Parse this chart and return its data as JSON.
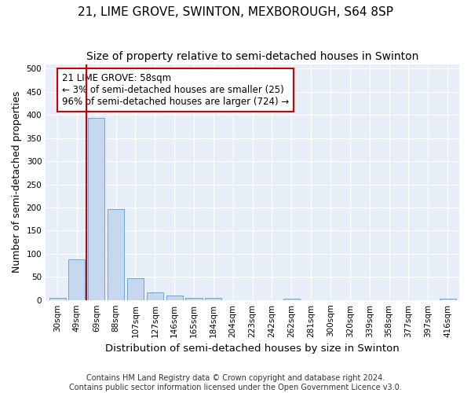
{
  "title": "21, LIME GROVE, SWINTON, MEXBOROUGH, S64 8SP",
  "subtitle": "Size of property relative to semi-detached houses in Swinton",
  "xlabel": "Distribution of semi-detached houses by size in Swinton",
  "ylabel": "Number of semi-detached properties",
  "categories": [
    "30sqm",
    "49sqm",
    "69sqm",
    "88sqm",
    "107sqm",
    "127sqm",
    "146sqm",
    "165sqm",
    "184sqm",
    "204sqm",
    "223sqm",
    "242sqm",
    "262sqm",
    "281sqm",
    "300sqm",
    "320sqm",
    "339sqm",
    "358sqm",
    "377sqm",
    "397sqm",
    "416sqm"
  ],
  "values": [
    5,
    87,
    393,
    197,
    47,
    16,
    9,
    4,
    5,
    0,
    0,
    0,
    3,
    0,
    0,
    0,
    0,
    0,
    0,
    0,
    3
  ],
  "bar_color": "#c5d8f0",
  "bar_edge_color": "#6fa8d4",
  "vline_color": "#cc0000",
  "annotation_text": "21 LIME GROVE: 58sqm\n← 3% of semi-detached houses are smaller (25)\n96% of semi-detached houses are larger (724) →",
  "annotation_box_facecolor": "#ffffff",
  "annotation_box_edgecolor": "#cc0000",
  "ylim": [
    0,
    510
  ],
  "yticks": [
    0,
    50,
    100,
    150,
    200,
    250,
    300,
    350,
    400,
    450,
    500
  ],
  "footer1": "Contains HM Land Registry data © Crown copyright and database right 2024.",
  "footer2": "Contains public sector information licensed under the Open Government Licence v3.0.",
  "bg_color": "#ffffff",
  "plot_bg_color": "#e8eef8",
  "title_fontsize": 11,
  "subtitle_fontsize": 10,
  "axis_label_fontsize": 9,
  "tick_fontsize": 7.5,
  "annotation_fontsize": 8.5,
  "footer_fontsize": 7
}
